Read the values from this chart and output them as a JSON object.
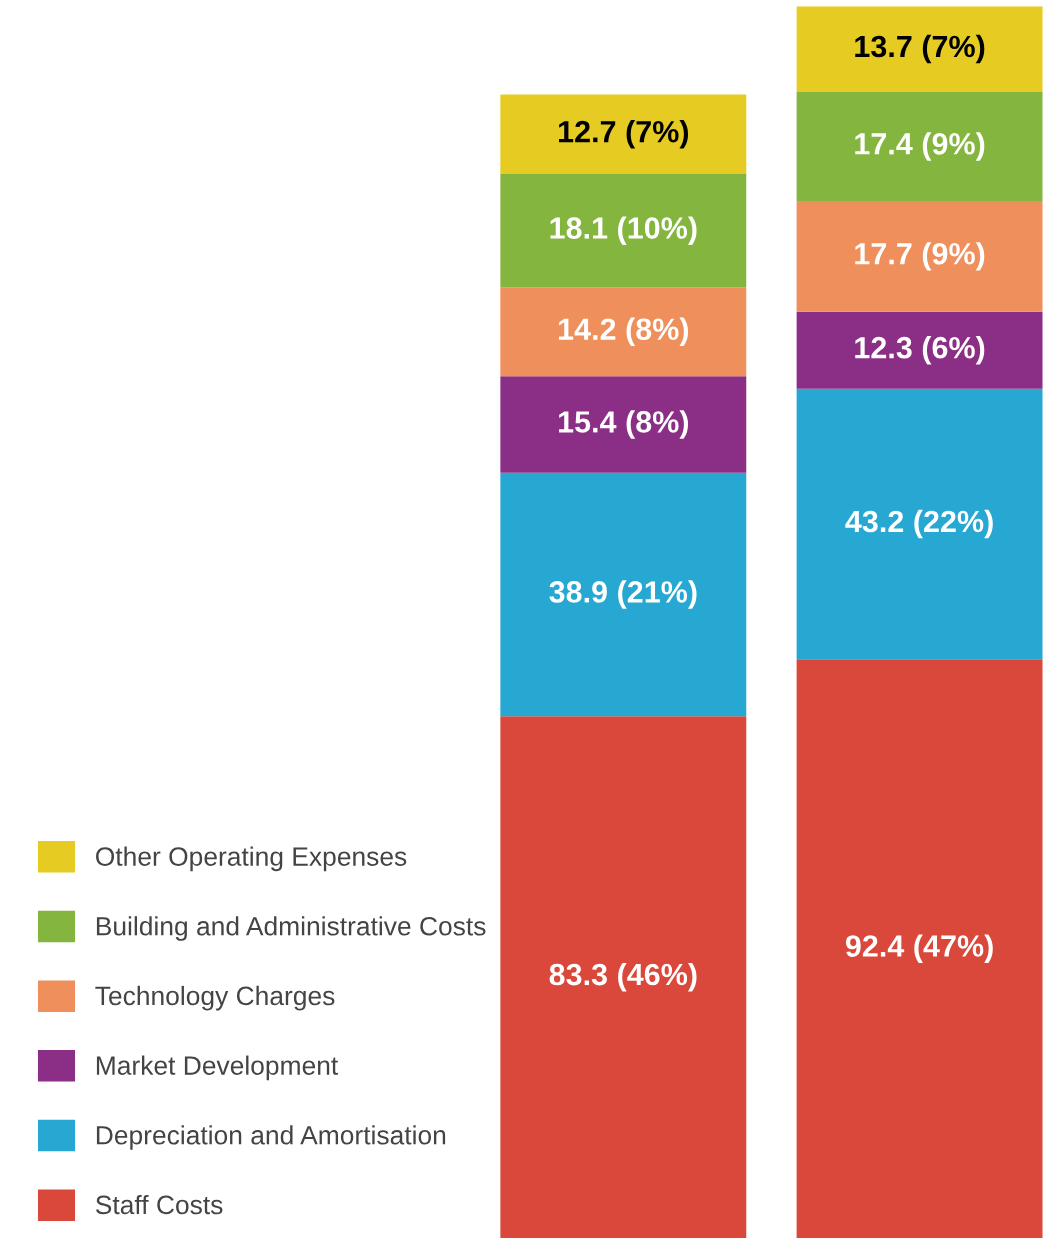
{
  "chart_data": {
    "type": "bar",
    "stacked": true,
    "categories": [
      null,
      null
    ],
    "legend": "left",
    "series": [
      {
        "name": "Staff Costs",
        "color": "#d9483a",
        "values": [
          83.3,
          92.4
        ],
        "value_labels": [
          "83.3 (46%)",
          "92.4 (47%)"
        ]
      },
      {
        "name": "Depreciation and Amortisation",
        "color": "#27a8d2",
        "values": [
          38.9,
          43.2
        ],
        "value_labels": [
          "38.9 (21%)",
          "43.2 (22%)"
        ]
      },
      {
        "name": "Market Development",
        "color": "#8b2f86",
        "values": [
          15.4,
          12.3
        ],
        "value_labels": [
          "15.4 (8%)",
          "12.3 (6%)"
        ]
      },
      {
        "name": "Technology Charges",
        "color": "#ee8f5c",
        "values": [
          14.2,
          17.7
        ],
        "value_labels": [
          "14.2 (8%)",
          "17.7 (9%)"
        ]
      },
      {
        "name": "Building and Administrative Costs",
        "color": "#84b53f",
        "values": [
          18.1,
          17.4
        ],
        "value_labels": [
          "18.1 (10%)",
          "17.4 (9%)"
        ]
      },
      {
        "name": "Other Operating Expenses",
        "color": "#e6cc22",
        "values": [
          12.7,
          13.7
        ],
        "value_labels": [
          "12.7 (7%)",
          "13.7 (7%)"
        ]
      }
    ]
  }
}
